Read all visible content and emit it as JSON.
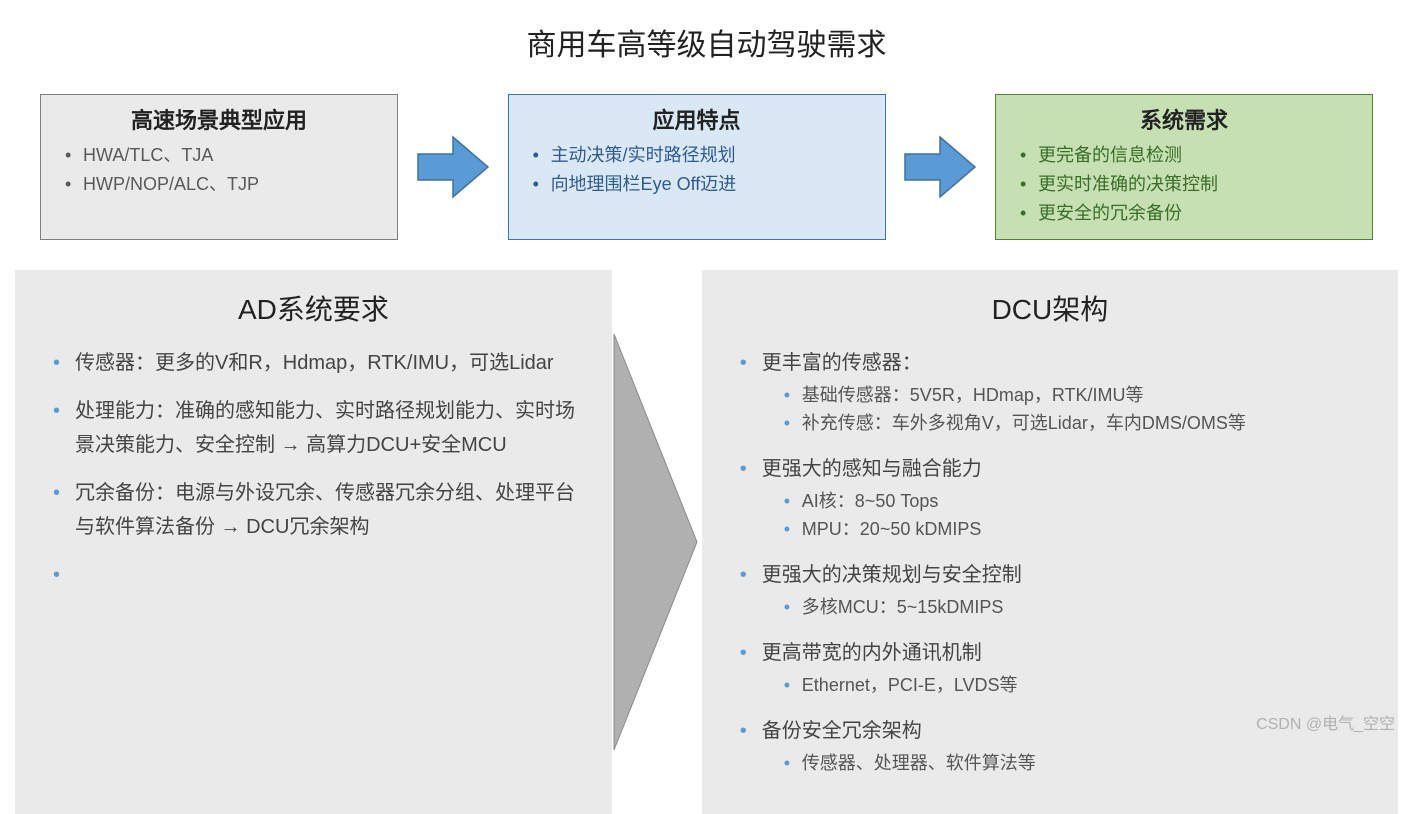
{
  "title": "商用车高等级自动驾驶需求",
  "row1": {
    "box1": {
      "header": "高速场景典型应用",
      "items": [
        "HWA/TLC、TJA",
        "HWP/NOP/ALC、TJP"
      ]
    },
    "box2": {
      "header": "应用特点",
      "items": [
        "主动决策/实时路径规划",
        "向地理围栏Eye Off迈进"
      ]
    },
    "box3": {
      "header": "系统需求",
      "items": [
        "更完备的信息检测",
        "更实时准确的决策控制",
        "更安全的冗余备份"
      ]
    }
  },
  "arrow_small": {
    "fill": "#5b9bd5",
    "stroke": "#41719c"
  },
  "arrow_big": {
    "fill": "#b0b0b0",
    "stroke": "#8a8a8a"
  },
  "panel_left": {
    "title": "AD系统要求",
    "items": [
      "传感器：更多的V和R，Hdmap，RTK/IMU，可选Lidar",
      "处理能力：准确的感知能力、实时路径规划能力、实时场景决策能力、安全控制 → 高算力DCU+安全MCU",
      "冗余备份：电源与外设冗余、传感器冗余分组、处理平台与软件算法备份 → DCU冗余架构",
      ""
    ]
  },
  "panel_right": {
    "title": "DCU架构",
    "items": [
      {
        "text": "更丰富的传感器：",
        "sub": [
          "基础传感器：5V5R，HDmap，RTK/IMU等",
          "补充传感：车外多视角V，可选Lidar，车内DMS/OMS等"
        ]
      },
      {
        "text": "更强大的感知与融合能力",
        "sub": [
          "AI核：8~50 Tops",
          "MPU：20~50 kDMIPS"
        ]
      },
      {
        "text": "更强大的决策规划与安全控制",
        "sub": [
          "多核MCU：5~15kDMIPS"
        ]
      },
      {
        "text": "更高带宽的内外通讯机制",
        "sub": [
          "Ethernet，PCI-E，LVDS等"
        ]
      },
      {
        "text": "备份安全冗余架构",
        "sub": [
          "传感器、处理器、软件算法等"
        ]
      }
    ]
  },
  "colors": {
    "gray_bg": "#eaeaea",
    "gray_border": "#7f7f7f",
    "blue_bg": "#dae8f5",
    "blue_border": "#3a74b7",
    "green_bg": "#c6e0b4",
    "green_border": "#548235",
    "bullet": "#5b9bd5"
  },
  "watermark": "CSDN @电气_空空"
}
